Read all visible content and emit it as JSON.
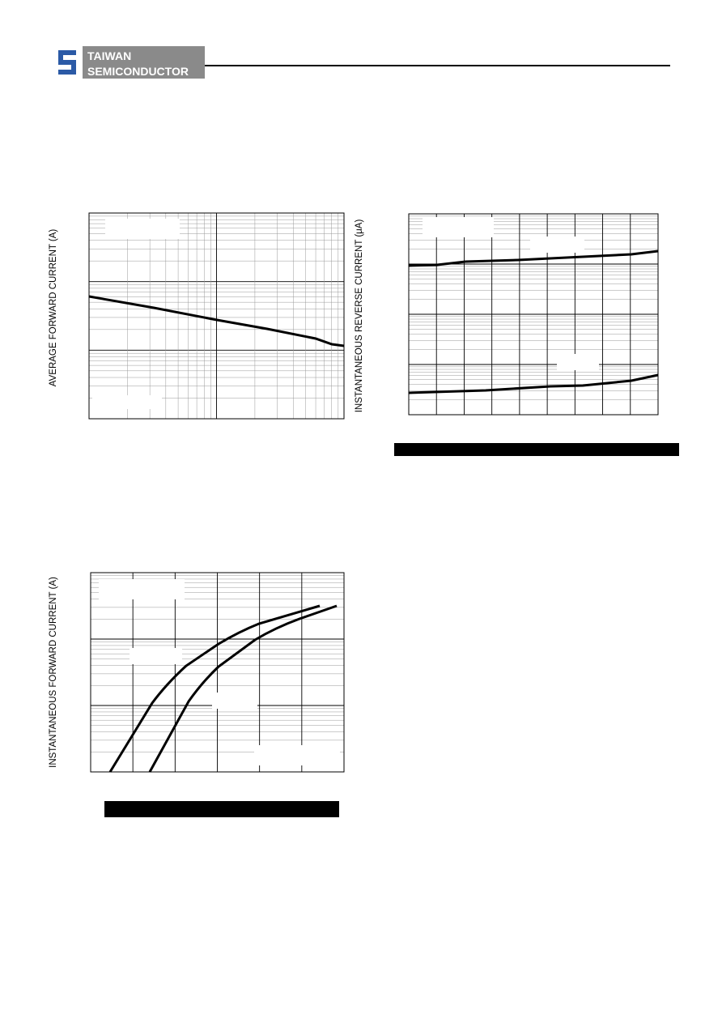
{
  "header": {
    "company_line1": "TAIWAN",
    "company_line2": "SEMICONDUCTOR"
  },
  "charts": [
    {
      "y_label": "AVERAGE FORWARD CURRENT (A)"
    },
    {
      "y_label": "INSTANTANEOUS REVERSE CURRENT (μA)"
    },
    {
      "y_label": "INSTANTANEOUS FORWARD CURRENT (A)"
    }
  ]
}
